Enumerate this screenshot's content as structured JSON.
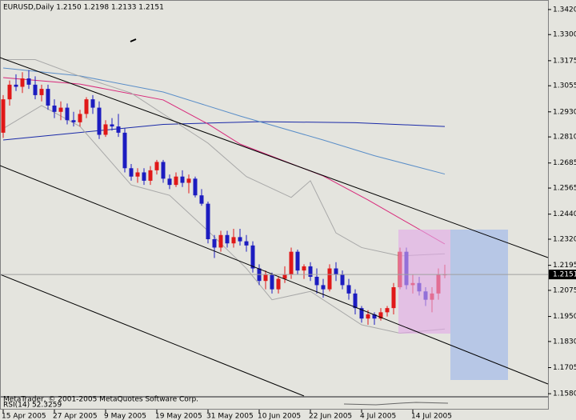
{
  "chart_data": {
    "type": "candlestick",
    "title": "EURUSD,Daily  1.2150 1.2198 1.2133 1.2151",
    "copyright": "MetaTrader, © 2001-2005 MetaQuotes Software Corp.",
    "indicator_label": "RSI(14) 52.3259",
    "categories": [
      "15 Apr 2005",
      null,
      null,
      null,
      null,
      null,
      null,
      null,
      "27 Apr 2005",
      null,
      null,
      null,
      null,
      null,
      null,
      null,
      "9 May 2005",
      null,
      null,
      null,
      null,
      null,
      null,
      null,
      "19 May 2005",
      null,
      null,
      null,
      null,
      null,
      null,
      null,
      "31 May 2005",
      null,
      null,
      null,
      null,
      null,
      null,
      null,
      "10 Jun 2005",
      null,
      null,
      null,
      null,
      null,
      null,
      null,
      "22 Jun 2005",
      null,
      null,
      null,
      null,
      null,
      null,
      null,
      "4 Jul 2005",
      null,
      null,
      null,
      null,
      null,
      null,
      null,
      "14 Jul 2005",
      null,
      null,
      null,
      null,
      null
    ],
    "open": [
      1.283,
      1.299,
      1.306,
      1.305,
      1.309,
      1.306,
      1.301,
      1.304,
      1.296,
      1.293,
      1.295,
      1.289,
      1.288,
      1.292,
      1.299,
      1.295,
      1.282,
      1.287,
      1.286,
      1.283,
      1.266,
      1.262,
      1.264,
      1.26,
      1.265,
      1.269,
      1.261,
      1.258,
      1.262,
      1.259,
      1.261,
      1.253,
      1.249,
      1.232,
      1.228,
      1.234,
      1.23,
      1.233,
      1.231,
      1.229,
      1.218,
      1.212,
      1.215,
      1.208,
      1.213,
      1.215,
      1.226,
      1.217,
      1.219,
      1.214,
      1.21,
      1.208,
      1.218,
      1.215,
      1.21,
      1.206,
      1.199,
      1.194,
      1.196,
      1.194,
      1.197,
      1.199,
      1.209,
      1.226,
      1.21,
      1.211,
      1.207,
      1.203,
      1.206,
      1.215
    ],
    "high": [
      1.301,
      1.308,
      1.311,
      1.312,
      1.313,
      1.31,
      1.306,
      1.306,
      1.299,
      1.298,
      1.297,
      1.293,
      1.294,
      1.3,
      1.301,
      1.298,
      1.289,
      1.29,
      1.292,
      1.285,
      1.268,
      1.266,
      1.266,
      1.267,
      1.27,
      1.27,
      1.263,
      1.264,
      1.265,
      1.263,
      1.262,
      1.256,
      1.25,
      1.234,
      1.236,
      1.236,
      1.237,
      1.237,
      1.234,
      1.231,
      1.22,
      1.217,
      1.216,
      1.214,
      1.219,
      1.228,
      1.227,
      1.22,
      1.221,
      1.218,
      1.213,
      1.22,
      1.221,
      1.217,
      1.213,
      1.208,
      1.2,
      1.198,
      1.197,
      1.199,
      1.2,
      1.211,
      1.228,
      1.228,
      1.215,
      1.214,
      1.209,
      1.209,
      1.218,
      1.2198
    ],
    "low": [
      1.2805,
      1.296,
      1.303,
      1.302,
      1.304,
      1.299,
      1.298,
      1.294,
      1.29,
      1.289,
      1.287,
      1.286,
      1.286,
      1.29,
      1.292,
      1.28,
      1.281,
      1.284,
      1.281,
      1.264,
      1.26,
      1.259,
      1.258,
      1.258,
      1.263,
      1.259,
      1.256,
      1.257,
      1.257,
      1.254,
      1.252,
      1.248,
      1.23,
      1.223,
      1.226,
      1.228,
      1.228,
      1.229,
      1.226,
      1.216,
      1.21,
      1.208,
      1.206,
      1.206,
      1.211,
      1.213,
      1.215,
      1.213,
      1.212,
      1.206,
      1.204,
      1.207,
      1.212,
      1.208,
      1.203,
      1.196,
      1.192,
      1.191,
      1.191,
      1.193,
      1.195,
      1.196,
      1.208,
      1.208,
      1.206,
      1.205,
      1.2,
      1.197,
      1.203,
      1.2133
    ],
    "close": [
      1.299,
      1.306,
      1.305,
      1.309,
      1.306,
      1.301,
      1.304,
      1.296,
      1.293,
      1.295,
      1.289,
      1.288,
      1.292,
      1.299,
      1.295,
      1.282,
      1.287,
      1.286,
      1.283,
      1.266,
      1.262,
      1.264,
      1.26,
      1.265,
      1.269,
      1.261,
      1.258,
      1.262,
      1.259,
      1.261,
      1.253,
      1.249,
      1.232,
      1.228,
      1.234,
      1.23,
      1.233,
      1.231,
      1.229,
      1.218,
      1.212,
      1.215,
      1.208,
      1.213,
      1.215,
      1.226,
      1.217,
      1.219,
      1.214,
      1.21,
      1.208,
      1.218,
      1.215,
      1.21,
      1.206,
      1.199,
      1.194,
      1.196,
      1.194,
      1.197,
      1.199,
      1.209,
      1.226,
      1.21,
      1.211,
      1.207,
      1.203,
      1.206,
      1.215,
      1.2151
    ],
    "up_color": "#e01818",
    "down_color": "#1c1cc0",
    "overlays": [
      {
        "color": "#1a2aa8",
        "x": [
          0,
          15,
          25,
          40,
          55,
          69
        ],
        "values": [
          1.2795,
          1.284,
          1.287,
          1.2883,
          1.2878,
          1.286
        ]
      },
      {
        "color": "#5a8ec8",
        "x": [
          0,
          12,
          25,
          37,
          50,
          58,
          69
        ],
        "values": [
          1.314,
          1.3102,
          1.3025,
          1.291,
          1.2795,
          1.272,
          1.2632
        ]
      },
      {
        "color": "#d8287a",
        "x": [
          0,
          12,
          25,
          32,
          37,
          50,
          57,
          69
        ],
        "values": [
          1.3094,
          1.3063,
          1.2987,
          1.2872,
          1.2776,
          1.2623,
          1.2508,
          1.2297
        ]
      },
      {
        "color": "#a8a8a8",
        "x": [
          0,
          5,
          12,
          20,
          26,
          32,
          38,
          45,
          48,
          52,
          56,
          62,
          69
        ],
        "values": [
          1.318,
          1.318,
          1.31,
          1.302,
          1.29,
          1.278,
          1.262,
          1.252,
          1.26,
          1.235,
          1.228,
          1.224,
          1.225
        ]
      },
      {
        "color": "#a8a8a8",
        "x": [
          0,
          6,
          12,
          20,
          26,
          32,
          38,
          42,
          48,
          56,
          62,
          69
        ],
        "values": [
          1.285,
          1.296,
          1.286,
          1.258,
          1.253,
          1.236,
          1.218,
          1.203,
          1.207,
          1.191,
          1.187,
          1.189
        ]
      }
    ],
    "ylim": [
      1.1569,
      1.3458
    ],
    "yticks": [
      {
        "value": 1.342,
        "label": "1.3420"
      },
      {
        "value": 1.33,
        "label": "1.3300"
      },
      {
        "value": 1.3175,
        "label": "1.3175"
      },
      {
        "value": 1.3055,
        "label": "1.3055"
      },
      {
        "value": 1.293,
        "label": "1.2930"
      },
      {
        "value": 1.281,
        "label": "1.2810"
      },
      {
        "value": 1.2685,
        "label": "1.2685"
      },
      {
        "value": 1.2565,
        "label": "1.2565"
      },
      {
        "value": 1.244,
        "label": "1.2440"
      },
      {
        "value": 1.232,
        "label": "1.2320"
      },
      {
        "value": 1.2195,
        "label": "1.2195"
      },
      {
        "value": 1.2075,
        "label": "1.2075"
      },
      {
        "value": 1.195,
        "label": "1.1950"
      },
      {
        "value": 1.183,
        "label": "1.1830"
      },
      {
        "value": 1.1705,
        "label": "1.1705"
      },
      {
        "value": 1.158,
        "label": "1.1580"
      }
    ]
  }
}
